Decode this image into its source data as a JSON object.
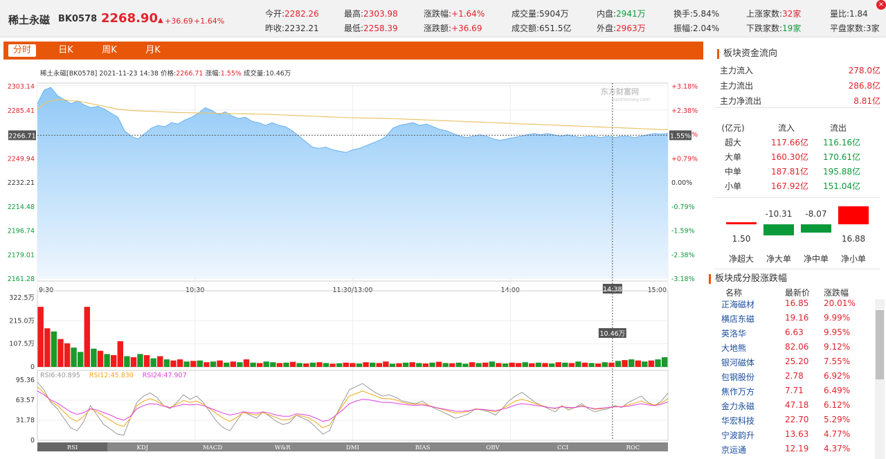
{
  "header": {
    "name": "稀土永磁",
    "code": "BK0578",
    "price": "2268.90",
    "change": "+36.69",
    "pct": "+1.64%",
    "quotes": [
      {
        "label": "今开:",
        "value": "2282.26",
        "color": "red"
      },
      {
        "label": "昨收:",
        "value": "2232.21",
        "color": "dark"
      },
      {
        "label": "最高:",
        "value": "2303.98",
        "color": "red"
      },
      {
        "label": "最低:",
        "value": "2258.39",
        "color": "red"
      },
      {
        "label": "涨跌幅:",
        "value": "+1.64%",
        "color": "red"
      },
      {
        "label": "涨跌额:",
        "value": "+36.69",
        "color": "red"
      },
      {
        "label": "成交量:",
        "value": "5904万",
        "color": "dark"
      },
      {
        "label": "成交额:",
        "value": "651.5亿",
        "color": "dark"
      },
      {
        "label": "内盘:",
        "value": "2941万",
        "color": "green"
      },
      {
        "label": "外盘:",
        "value": "2963万",
        "color": "red"
      },
      {
        "label": "换手:",
        "value": "5.84%",
        "color": "dark"
      },
      {
        "label": "振幅:",
        "value": "2.04%",
        "color": "dark"
      },
      {
        "label": "上涨家数:",
        "value": "32家",
        "color": "red"
      },
      {
        "label": "下跌家数:",
        "value": "19家",
        "color": "green"
      },
      {
        "label": "量比:",
        "value": "1.84",
        "color": "dark"
      },
      {
        "label": "平盘家数:",
        "value": "3家",
        "color": "dark"
      }
    ]
  },
  "tabs": [
    "分时",
    "日K",
    "周K",
    "月K"
  ],
  "active_tab": 0,
  "chart_info": {
    "name": "稀土永磁[BK0578]",
    "datetime": "2021-11-23 14:38",
    "price_label": "价格:",
    "price": "2266.71",
    "pct_label": "涨幅:",
    "pct": "1.55%",
    "vol_label": "成交量:",
    "vol": "10.46万",
    "watermark": "东方财富网",
    "watermark_sub": "eastmoney.com",
    "cursor_price": "2266.71",
    "cursor_pct": "1.55%",
    "cursor_time": "14:38",
    "cursor_vol": "10.46万"
  },
  "chart_data": [
    {
      "type": "area",
      "price_ticks": [
        "2303.14",
        "2285.41",
        "2267.68",
        "2249.94",
        "2232.21",
        "2214.48",
        "2196.74",
        "2179.01",
        "2161.28"
      ],
      "pct_ticks": [
        "+3.18%",
        "+2.38%",
        "+1.59%",
        "+0.79%",
        "0.00%",
        "-0.79%",
        "-1.59%",
        "-2.38%",
        "-3.18%"
      ],
      "x_ticks": [
        "9:30",
        "10:30",
        "11:30/13:00",
        "14:00",
        "15:00"
      ],
      "ylim": [
        2161.28,
        2303.14
      ],
      "prev_close": 2232.21,
      "price": [
        2290,
        2300,
        2302,
        2296,
        2293,
        2290,
        2292,
        2289,
        2287,
        2288,
        2286,
        2283,
        2280,
        2270,
        2266,
        2264,
        2268,
        2272,
        2274,
        2273,
        2276,
        2275,
        2278,
        2280,
        2283,
        2287,
        2285,
        2282,
        2284,
        2281,
        2279,
        2280,
        2277,
        2276,
        2274,
        2276,
        2274,
        2273,
        2270,
        2266,
        2262,
        2258,
        2257,
        2258,
        2256,
        2255,
        2254,
        2256,
        2257,
        2259,
        2261,
        2263,
        2266,
        2272,
        2274,
        2275,
        2276,
        2274,
        2275,
        2273,
        2271,
        2270,
        2268,
        2266,
        2265,
        2266,
        2267,
        2266,
        2264,
        2263,
        2264,
        2265,
        2266,
        2267,
        2268,
        2267,
        2268,
        2267,
        2266,
        2267,
        2266,
        2265,
        2266,
        2266,
        2265,
        2266,
        2265,
        2266,
        2266,
        2265,
        2266,
        2267,
        2268,
        2267.5,
        2268
      ],
      "avg": [
        2286,
        2290,
        2292,
        2293,
        2293,
        2292,
        2292,
        2291,
        2290,
        2289,
        2288,
        2287,
        2286,
        2285.5,
        2285,
        2284.7,
        2284.5,
        2284.3,
        2284.1,
        2283.9,
        2283.7,
        2283.5,
        2283.4,
        2283.3,
        2283.2,
        2283.1,
        2283,
        2282.9,
        2282.8,
        2282.7,
        2282.6,
        2282.5,
        2282.4,
        2282.3,
        2282.2,
        2282,
        2281.8,
        2281.6,
        2281.4,
        2281.2,
        2281,
        2280.8,
        2280.6,
        2280.4,
        2280.2,
        2280,
        2279.8,
        2279.6,
        2279.5,
        2279.4,
        2279.3,
        2279.2,
        2279.1,
        2279,
        2278.8,
        2278.6,
        2278.4,
        2278.2,
        2278,
        2277.8,
        2277.6,
        2277.4,
        2277.2,
        2277,
        2276.8,
        2276.6,
        2276.4,
        2276.2,
        2276,
        2275.8,
        2275.6,
        2275.4,
        2275.2,
        2275,
        2274.8,
        2274.6,
        2274.4,
        2274.2,
        2274,
        2273.8,
        2273.6,
        2273.4,
        2273.2,
        2273,
        2272.8,
        2272.6,
        2272.4,
        2272.2,
        2272,
        2271.8,
        2271.6,
        2271.4,
        2271.2,
        2271,
        2270.8
      ]
    },
    {
      "type": "bar",
      "y_ticks": [
        "322.5万",
        "215.0万",
        "107.5万",
        "0"
      ],
      "ylim": [
        0,
        322.5
      ],
      "volume": [
        280,
        180,
        165,
        130,
        110,
        90,
        70,
        280,
        85,
        75,
        60,
        55,
        120,
        50,
        45,
        60,
        55,
        40,
        50,
        35,
        30,
        35,
        25,
        28,
        30,
        22,
        25,
        30,
        20,
        25,
        22,
        35,
        20,
        18,
        25,
        22,
        18,
        20,
        24,
        18,
        16,
        20,
        22,
        18,
        15,
        17,
        20,
        18,
        16,
        22,
        20,
        18,
        25,
        15,
        17,
        20,
        22,
        18,
        16,
        20,
        24,
        18,
        17,
        20,
        15,
        22,
        18,
        20,
        25,
        18,
        16,
        20,
        18,
        22,
        17,
        20,
        18,
        16,
        22,
        20,
        18,
        25,
        20,
        18,
        16,
        22,
        20,
        28,
        32,
        35,
        30,
        25,
        30,
        35,
        45
      ],
      "up": [
        1,
        1,
        0,
        1,
        1,
        0,
        0,
        1,
        0,
        1,
        0,
        1,
        1,
        0,
        1,
        0,
        1,
        0,
        1,
        0,
        1,
        1,
        0,
        1,
        0,
        1,
        0,
        1,
        0,
        1,
        0,
        1,
        0,
        1,
        0,
        0,
        1,
        0,
        1,
        0,
        1,
        0,
        1,
        0,
        1,
        0,
        1,
        1,
        0,
        1,
        0,
        1,
        1,
        0,
        1,
        0,
        1,
        0,
        1,
        0,
        1,
        0,
        1,
        0,
        0,
        1,
        0,
        1,
        0,
        1,
        0,
        1,
        1,
        0,
        1,
        0,
        1,
        0,
        1,
        0,
        1,
        0,
        1,
        0,
        1,
        0,
        1,
        0,
        1,
        0,
        1,
        0,
        1,
        0,
        0
      ]
    },
    {
      "type": "line",
      "y_ticks": [
        "95.36",
        "63.57",
        "31.78",
        "0"
      ],
      "ylim": [
        0,
        95.36
      ],
      "series": [
        {
          "name": "RSI6:40.895",
          "color": "#999999",
          "values": [
            92,
            80,
            60,
            50,
            35,
            20,
            15,
            30,
            55,
            40,
            25,
            18,
            10,
            8,
            35,
            60,
            70,
            75,
            68,
            55,
            50,
            60,
            72,
            65,
            70,
            60,
            45,
            30,
            20,
            15,
            30,
            45,
            40,
            35,
            45,
            38,
            30,
            25,
            28,
            40,
            35,
            30,
            20,
            10,
            15,
            40,
            60,
            80,
            85,
            90,
            82,
            75,
            70,
            72,
            68,
            62,
            60,
            58,
            62,
            55,
            50,
            45,
            40,
            35,
            38,
            42,
            50,
            48,
            45,
            40,
            50,
            62,
            70,
            76,
            68,
            60,
            55,
            50,
            45,
            55,
            48,
            52,
            58,
            50,
            45,
            48,
            50,
            55,
            52,
            60,
            65,
            70,
            60,
            55,
            62,
            75
          ]
        },
        {
          "name": "RSI12:45.830",
          "color": "#f0a818",
          "values": [
            85,
            75,
            62,
            55,
            45,
            35,
            30,
            38,
            50,
            45,
            38,
            32,
            25,
            22,
            35,
            55,
            62,
            66,
            62,
            55,
            52,
            57,
            63,
            60,
            62,
            57,
            50,
            42,
            35,
            30,
            36,
            44,
            42,
            40,
            44,
            40,
            36,
            32,
            33,
            40,
            38,
            35,
            28,
            20,
            24,
            40,
            55,
            70,
            74,
            78,
            74,
            70,
            66,
            66,
            64,
            60,
            58,
            57,
            58,
            55,
            52,
            49,
            46,
            43,
            44,
            46,
            50,
            49,
            47,
            45,
            50,
            56,
            62,
            65,
            62,
            58,
            55,
            52,
            50,
            54,
            51,
            52,
            55,
            52,
            49,
            50,
            52,
            54,
            53,
            56,
            59,
            62,
            58,
            56,
            59,
            66
          ]
        },
        {
          "name": "RSI24:47.907",
          "color": "#e040e0",
          "values": [
            78,
            72,
            64,
            59,
            52,
            45,
            41,
            44,
            50,
            48,
            44,
            40,
            35,
            32,
            38,
            50,
            55,
            58,
            57,
            54,
            52,
            54,
            57,
            56,
            57,
            55,
            51,
            47,
            43,
            40,
            42,
            45,
            44,
            43,
            45,
            43,
            40,
            38,
            38,
            42,
            41,
            39,
            35,
            30,
            32,
            40,
            48,
            58,
            62,
            65,
            64,
            62,
            60,
            60,
            59,
            57,
            56,
            55,
            56,
            54,
            52,
            50,
            48,
            46,
            46,
            47,
            49,
            49,
            48,
            47,
            49,
            52,
            56,
            58,
            57,
            55,
            54,
            52,
            51,
            53,
            52,
            52,
            54,
            52,
            50,
            51,
            52,
            53,
            53,
            54,
            56,
            58,
            56,
            55,
            57,
            61
          ]
        }
      ],
      "indicator_tabs": [
        "RSI",
        "KDJ",
        "MACD",
        "W&R",
        "DMI",
        "BIAS",
        "OBV",
        "CCI",
        "ROC"
      ]
    }
  ],
  "fund_flow": {
    "title": "板块资金流向",
    "rows": [
      {
        "label": "主力流入",
        "value": "278.0亿"
      },
      {
        "label": "主力流出",
        "value": "286.8亿"
      },
      {
        "label": "主力净流出",
        "value": "8.81亿"
      }
    ],
    "table_headers": [
      "(亿元)",
      "流入",
      "流出"
    ],
    "table_rows": [
      {
        "label": "超大",
        "in": "117.66亿",
        "out": "116.16亿"
      },
      {
        "label": "大单",
        "in": "160.30亿",
        "out": "170.61亿"
      },
      {
        "label": "中单",
        "in": "187.81亿",
        "out": "195.88亿"
      },
      {
        "label": "小单",
        "in": "167.92亿",
        "out": "151.04亿"
      }
    ],
    "net_bars": [
      {
        "label": "净超大",
        "value": "1.50",
        "num": 1.5
      },
      {
        "label": "净大单",
        "value": "-10.31",
        "num": -10.31
      },
      {
        "label": "净中单",
        "value": "-8.07",
        "num": -8.07
      },
      {
        "label": "净小单",
        "value": "16.88",
        "num": 16.88
      }
    ]
  },
  "constituents": {
    "title": "板块成分股涨跌幅",
    "headers": [
      "名称",
      "最新价",
      "涨跌幅"
    ],
    "rows": [
      {
        "name": "正海磁材",
        "price": "16.85",
        "pct": "20.01%"
      },
      {
        "name": "横店东磁",
        "price": "19.16",
        "pct": "9.99%"
      },
      {
        "name": "英洛华",
        "price": "6.63",
        "pct": "9.95%"
      },
      {
        "name": "大地熊",
        "price": "82.06",
        "pct": "9.12%"
      },
      {
        "name": "银河磁体",
        "price": "25.20",
        "pct": "7.55%"
      },
      {
        "name": "包钢股份",
        "price": "2.78",
        "pct": "6.92%"
      },
      {
        "name": "焦作万方",
        "price": "7.71",
        "pct": "6.49%"
      },
      {
        "name": "金力永磁",
        "price": "47.18",
        "pct": "6.12%"
      },
      {
        "name": "华宏科技",
        "price": "22.70",
        "pct": "5.29%"
      },
      {
        "name": "宁波韵升",
        "price": "13.63",
        "pct": "4.77%"
      },
      {
        "name": "京运通",
        "price": "12.19",
        "pct": "4.37%"
      }
    ]
  }
}
